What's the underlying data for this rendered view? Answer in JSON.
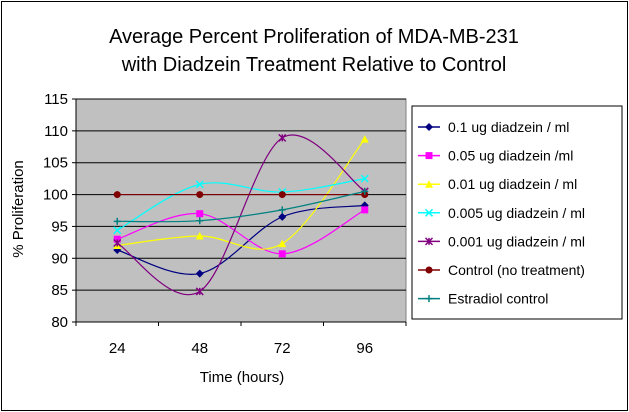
{
  "chart_data": {
    "type": "line",
    "title": [
      "Average Percent Proliferation of MDA-MB-231",
      "with Diadzein Treatment Relative to Control"
    ],
    "xlabel": "Time (hours)",
    "ylabel": "% Proliferation",
    "categories": [
      "24",
      "48",
      "72",
      "96"
    ],
    "ylim": [
      80,
      115
    ],
    "yticks": [
      "80",
      "85",
      "90",
      "95",
      "100",
      "105",
      "110",
      "115"
    ],
    "grid": true,
    "legend_position": "right",
    "plot_background": "#c0c0c0",
    "series": [
      {
        "name": "0.1 ug diadzein / ml",
        "values": [
          91.3,
          87.6,
          96.5,
          98.3
        ],
        "color": "#000080",
        "marker": "diamond"
      },
      {
        "name": "0.05 ug diadzein /ml",
        "values": [
          93.0,
          97.0,
          90.7,
          97.6
        ],
        "color": "#ff00ff",
        "marker": "square"
      },
      {
        "name": "0.01 ug diadzein / ml",
        "values": [
          92.0,
          93.5,
          92.3,
          108.7
        ],
        "color": "#ffff00",
        "marker": "triangle"
      },
      {
        "name": "0.005 ug diadzein / ml",
        "values": [
          94.4,
          101.6,
          100.4,
          102.5
        ],
        "color": "#00ffff",
        "marker": "x"
      },
      {
        "name": "0.001 ug diadzein / ml",
        "values": [
          92.4,
          84.8,
          108.9,
          100.5
        ],
        "color": "#800080",
        "marker": "star"
      },
      {
        "name": "Control (no treatment)",
        "values": [
          100,
          100,
          100,
          100
        ],
        "color": "#800000",
        "marker": "circle"
      },
      {
        "name": "Estradiol control",
        "values": [
          95.8,
          95.9,
          97.6,
          100.5
        ],
        "color": "#008080",
        "marker": "plus"
      }
    ]
  }
}
